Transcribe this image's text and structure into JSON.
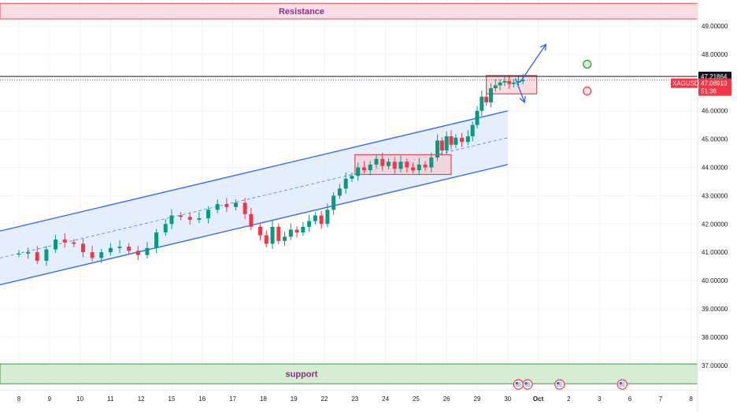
{
  "chart_data": {
    "type": "candlestick",
    "symbol": "XAGUSD",
    "y_axis": {
      "min": 36.0,
      "max": 49.6,
      "ticks": [
        "49.00000",
        "48.00000",
        "47.00000",
        "46.00000",
        "45.00000",
        "44.00000",
        "43.00000",
        "42.00000",
        "41.00000",
        "40.00000",
        "39.00000",
        "38.00000",
        "37.00000"
      ]
    },
    "x_axis": {
      "ticks": [
        {
          "label": "8",
          "bold": false
        },
        {
          "label": "9",
          "bold": false
        },
        {
          "label": "10",
          "bold": false
        },
        {
          "label": "11",
          "bold": false
        },
        {
          "label": "12",
          "bold": false
        },
        {
          "label": "15",
          "bold": false
        },
        {
          "label": "16",
          "bold": false
        },
        {
          "label": "17",
          "bold": false
        },
        {
          "label": "18",
          "bold": false
        },
        {
          "label": "19",
          "bold": false
        },
        {
          "label": "22",
          "bold": false
        },
        {
          "label": "23",
          "bold": false
        },
        {
          "label": "24",
          "bold": false
        },
        {
          "label": "25",
          "bold": false
        },
        {
          "label": "26",
          "bold": false
        },
        {
          "label": "29",
          "bold": false
        },
        {
          "label": "30",
          "bold": false
        },
        {
          "label": "Oct",
          "bold": true
        },
        {
          "label": "2",
          "bold": false
        },
        {
          "label": "3",
          "bold": false
        },
        {
          "label": "6",
          "bold": false
        },
        {
          "label": "7",
          "bold": false
        },
        {
          "label": "8",
          "bold": false
        }
      ]
    },
    "zones": [
      {
        "label": "Resistance",
        "from": 49.25,
        "to": 49.8,
        "fill": "#f9dfe3",
        "stroke": "#e0495a",
        "text_color": "#8e2c8a"
      },
      {
        "label": "support",
        "from": 36.35,
        "to": 37.05,
        "fill": "#d6ecd4",
        "stroke": "#3c9a3c",
        "text_color": "#8e2c8a"
      }
    ],
    "price_lines": [
      {
        "value": 47.21864,
        "label": "47.21864",
        "color": "#131722",
        "style": "solid",
        "tag_bg": "#131722"
      },
      {
        "value": 47.0891,
        "label": "47.08910",
        "countdown": "51:36",
        "color": "#f23645",
        "style": "dotted",
        "tag_bg": "#f23645"
      }
    ],
    "channel": {
      "upper": [
        [
          0,
          41.75
        ],
        [
          16.0,
          46.0
        ]
      ],
      "lower": [
        [
          0,
          39.85
        ],
        [
          16.0,
          44.1
        ]
      ],
      "mid_dashed": true,
      "fill": "#dbe8fb",
      "stroke": "#2962ff"
    },
    "boxes": [
      {
        "x0": 11.0,
        "x1": 14.15,
        "y0": 43.75,
        "y1": 44.45,
        "fill": "#f3cdd3",
        "stroke": "#e0495a"
      },
      {
        "x0": 15.3,
        "x1": 16.95,
        "y0": 46.6,
        "y1": 47.25,
        "fill": "#f3cdd3",
        "stroke": "#e0495a"
      }
    ],
    "arrows": [
      {
        "from": [
          16.4,
          47.0
        ],
        "to": [
          17.25,
          48.35
        ],
        "color": "#2962ff"
      },
      {
        "from": [
          16.25,
          47.15
        ],
        "to": [
          16.55,
          46.3
        ],
        "color": "#2962ff"
      }
    ],
    "markers": [
      {
        "x": 18.6,
        "y": 47.65,
        "type": "circle",
        "color": "#3c9a3c"
      },
      {
        "x": 18.6,
        "y": 46.7,
        "type": "circle",
        "color": "#e0495a"
      }
    ],
    "events_row": [
      16.35,
      16.65,
      17.7,
      19.75
    ]
  }
}
